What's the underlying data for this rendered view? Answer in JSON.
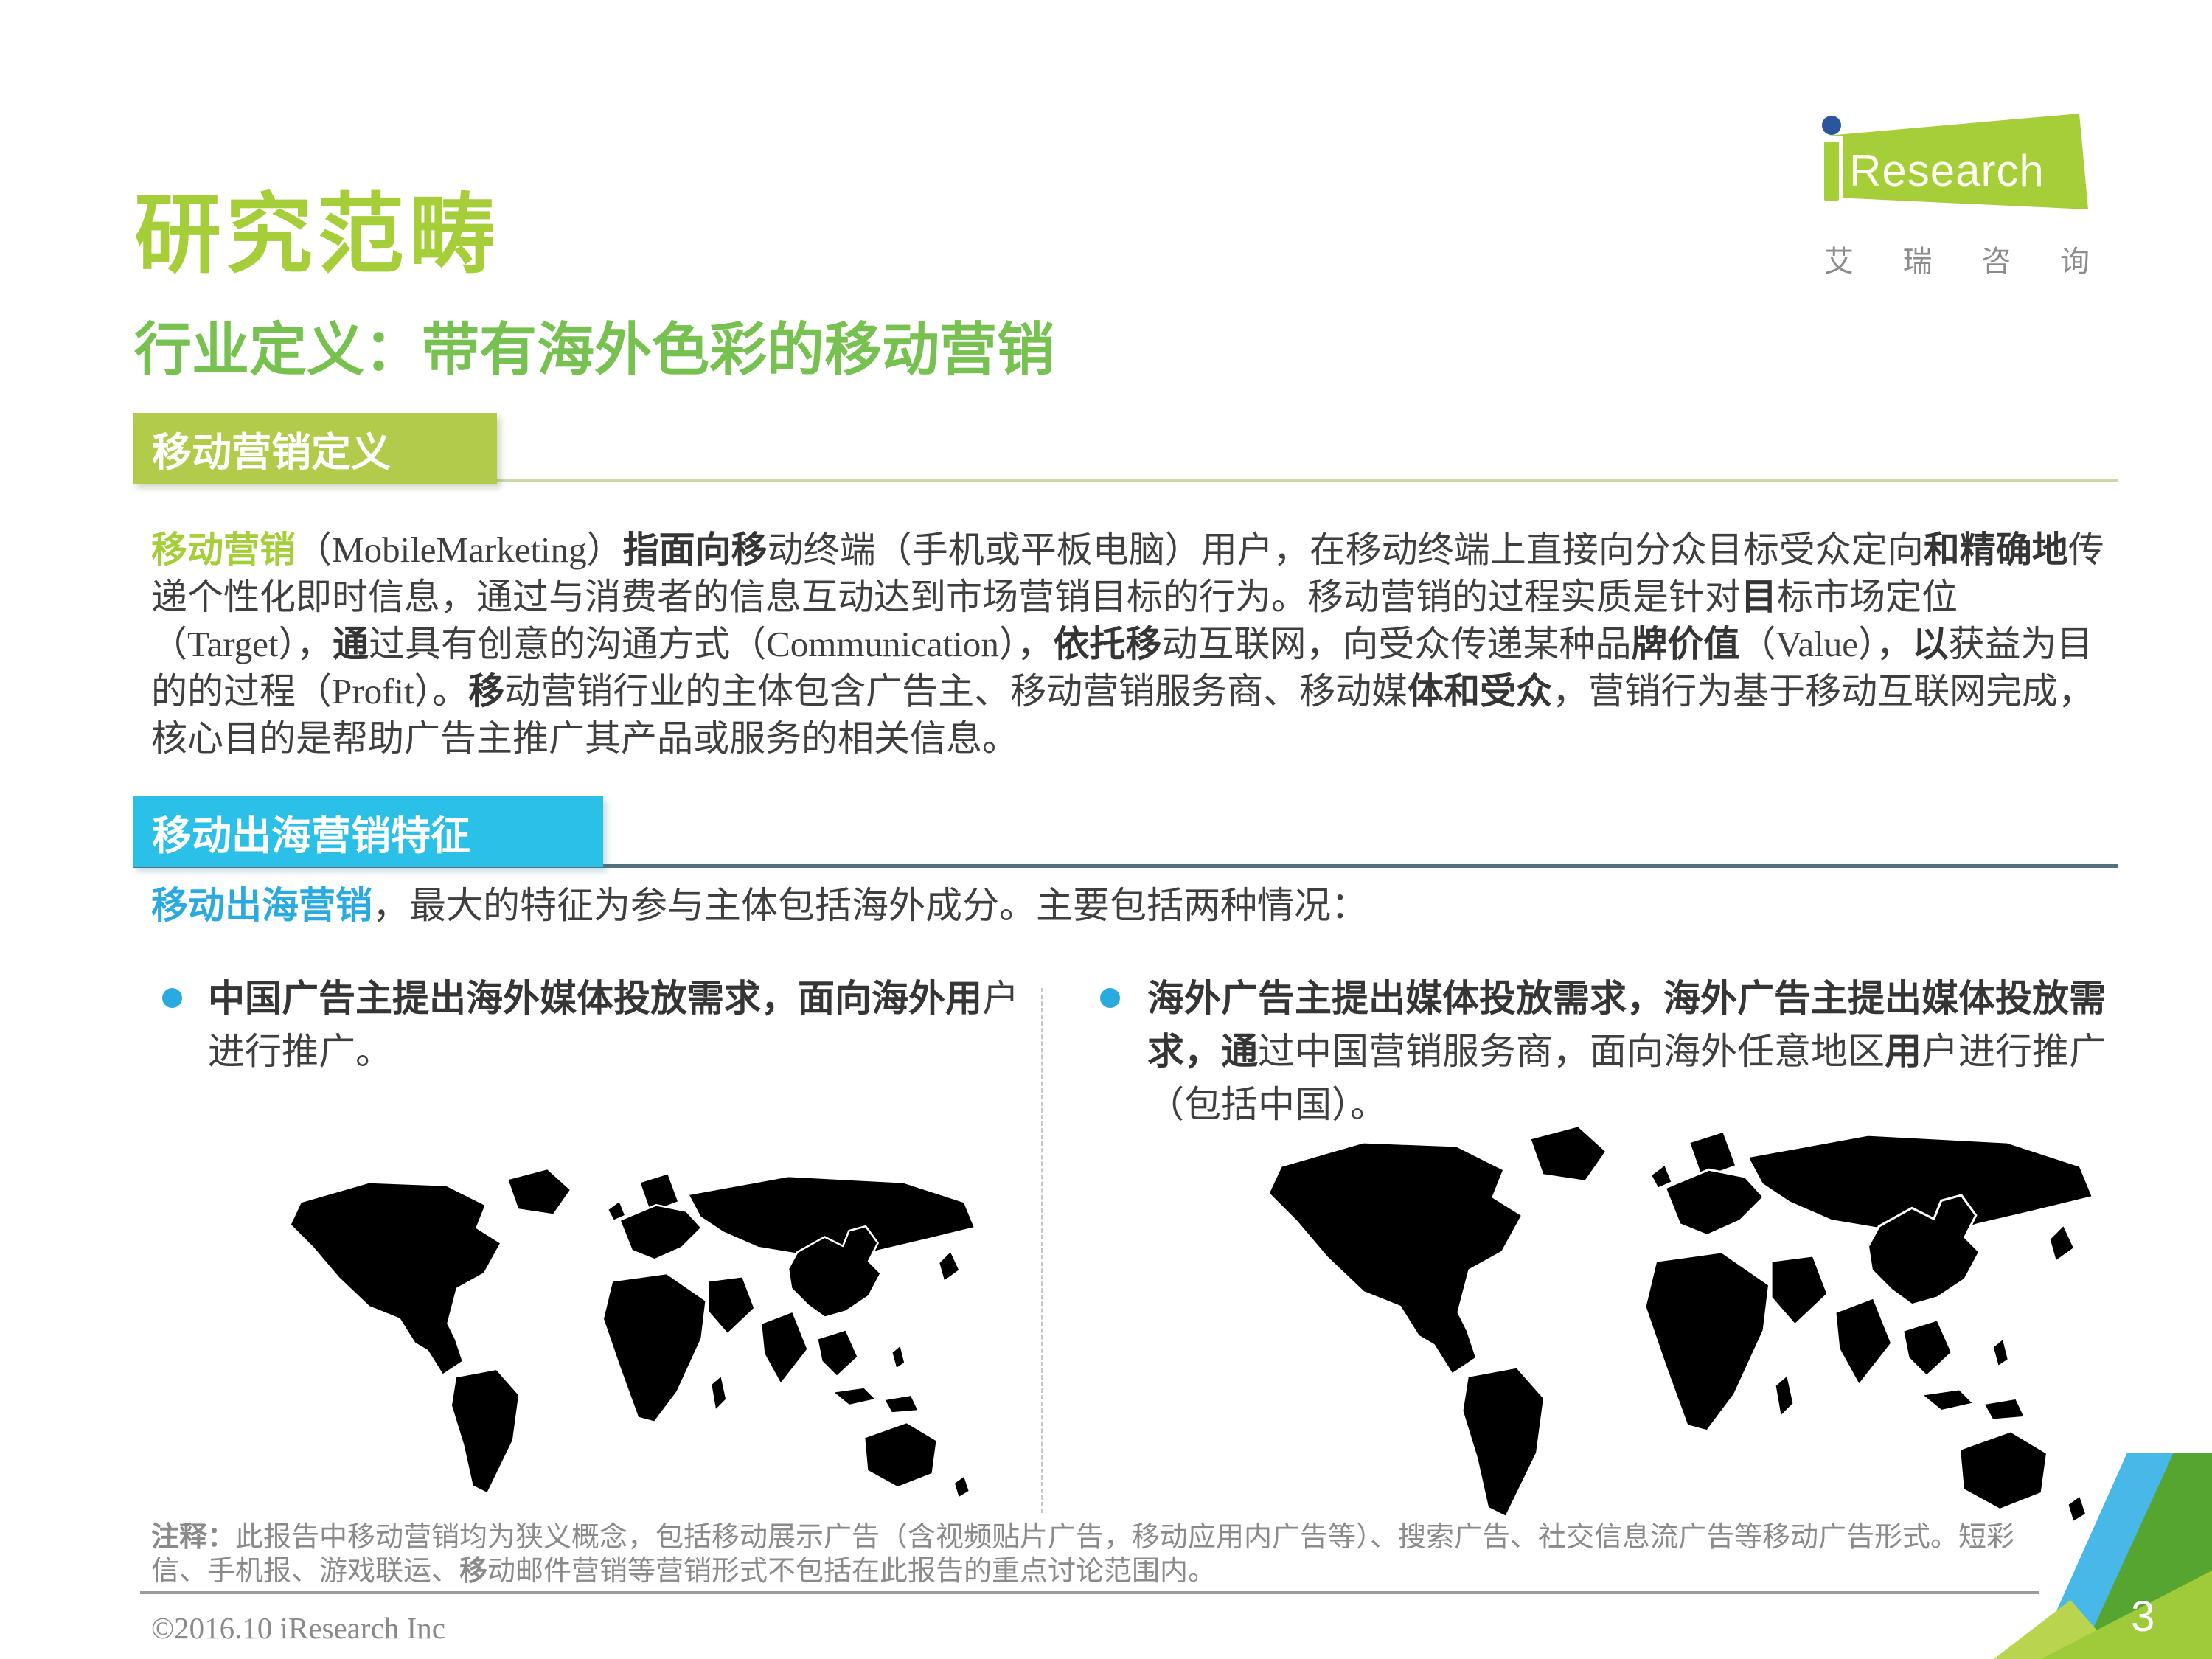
{
  "page": {
    "title": "研究范畴",
    "subtitle": "行业定义：带有海外色彩的移动营销",
    "page_number": "3",
    "copyright": "©2016.10  iResearch  Inc"
  },
  "logo": {
    "brand_text": "Research",
    "brand_cn": "艾瑞咨询",
    "brand_cn_chars": [
      "艾",
      "瑞",
      "咨",
      "询"
    ]
  },
  "definition_section": {
    "header": "移动营销定义",
    "paragraph": [
      {
        "t": "移动营销",
        "s": "g"
      },
      {
        "t": "（MobileMarketing）",
        "s": ""
      },
      {
        "t": "指面向移",
        "s": "b"
      },
      {
        "t": "动终端（手机或平板电脑）用户，在移动终端上直接向分众目标受众定向",
        "s": ""
      },
      {
        "t": "和精确地",
        "s": "b"
      },
      {
        "t": "传递个性化即时信息，通过与消费者的信息互动达到市场营销目标的行为。移动营销的过程实质是针对",
        "s": ""
      },
      {
        "t": "目",
        "s": "b"
      },
      {
        "t": "标市场定位（Target），",
        "s": ""
      },
      {
        "t": "通",
        "s": "b"
      },
      {
        "t": "过具有创意的沟通方式（Communication），",
        "s": ""
      },
      {
        "t": "依托移",
        "s": "b"
      },
      {
        "t": "动互联网，向受众传递某种品",
        "s": ""
      },
      {
        "t": "牌价值",
        "s": "b"
      },
      {
        "t": "（Value），",
        "s": ""
      },
      {
        "t": "以",
        "s": "b"
      },
      {
        "t": "获益为目的的过程（Profit）。",
        "s": ""
      },
      {
        "t": "移",
        "s": "b"
      },
      {
        "t": "动营销行业的主体包含广告主、移动营销服务商、移动媒",
        "s": ""
      },
      {
        "t": "体和受众",
        "s": "b"
      },
      {
        "t": "，营销行为基于移动互联网完成，核心目的是帮助广告主推广其产品或服务的相关信息。",
        "s": ""
      }
    ]
  },
  "features_section": {
    "header": "移动出海营销特征",
    "intro": [
      {
        "t": "移动出海营销",
        "s": "c"
      },
      {
        "t": "，最大的特征为参与主体包括海外成分。主要包括两种情况：",
        "s": ""
      }
    ],
    "bullets": [
      {
        "segments": [
          {
            "t": "中国广告主提出海外媒体投放需求，面向海外用",
            "s": "b"
          },
          {
            "t": "户进行推广。",
            "s": ""
          }
        ],
        "map": "world map, all countries gray, China highlighted green"
      },
      {
        "segments": [
          {
            "t": "海外广告主提出媒体投放需求，海外广告主提出媒体投放需求，通",
            "s": "b"
          },
          {
            "t": "过中国营销服务商，面向海外任意地区",
            "s": ""
          },
          {
            "t": "用",
            "s": "b"
          },
          {
            "t": "户进行推广（包括中国）。",
            "s": ""
          }
        ],
        "map": "world map, all countries blue, China gray"
      }
    ]
  },
  "note": {
    "segments": [
      {
        "t": "注释：",
        "s": "b"
      },
      {
        "t": "此报告中移动营销均为狭义概念，包括移动展示广告（含视频贴片广告，移动应用内广告等）、搜索广告、社交信息流广告等移动广告形式。短彩信、手机报、游戏联运、",
        "s": ""
      },
      {
        "t": "移",
        "s": "b"
      },
      {
        "t": "动邮件营销等营销形式不包括在此报告的重点讨论范围内。",
        "s": ""
      }
    ]
  },
  "colors": {
    "brand_green": "#A5CE39",
    "subtitle_green": "#76C14F",
    "header_green_bg": "#B3CB4B",
    "header_blue_bg": "#2BC0E7",
    "bullet_cyan": "#29ABE2",
    "map_land_gray": "#C9CBCD",
    "map_land_blue": "#2EB8E6",
    "map_china_green": "#A5CE39",
    "map_china_gray": "#C8C8C8",
    "text_dark": "#3F3F3F",
    "note_gray": "#8A8A8A",
    "logo_dot_blue": "#2B569E",
    "corner_blue": "#47B8E8",
    "corner_dark_green": "#56A531",
    "corner_yellow_green": "#9FCB3A",
    "corner_light_green": "#B9D44E"
  }
}
